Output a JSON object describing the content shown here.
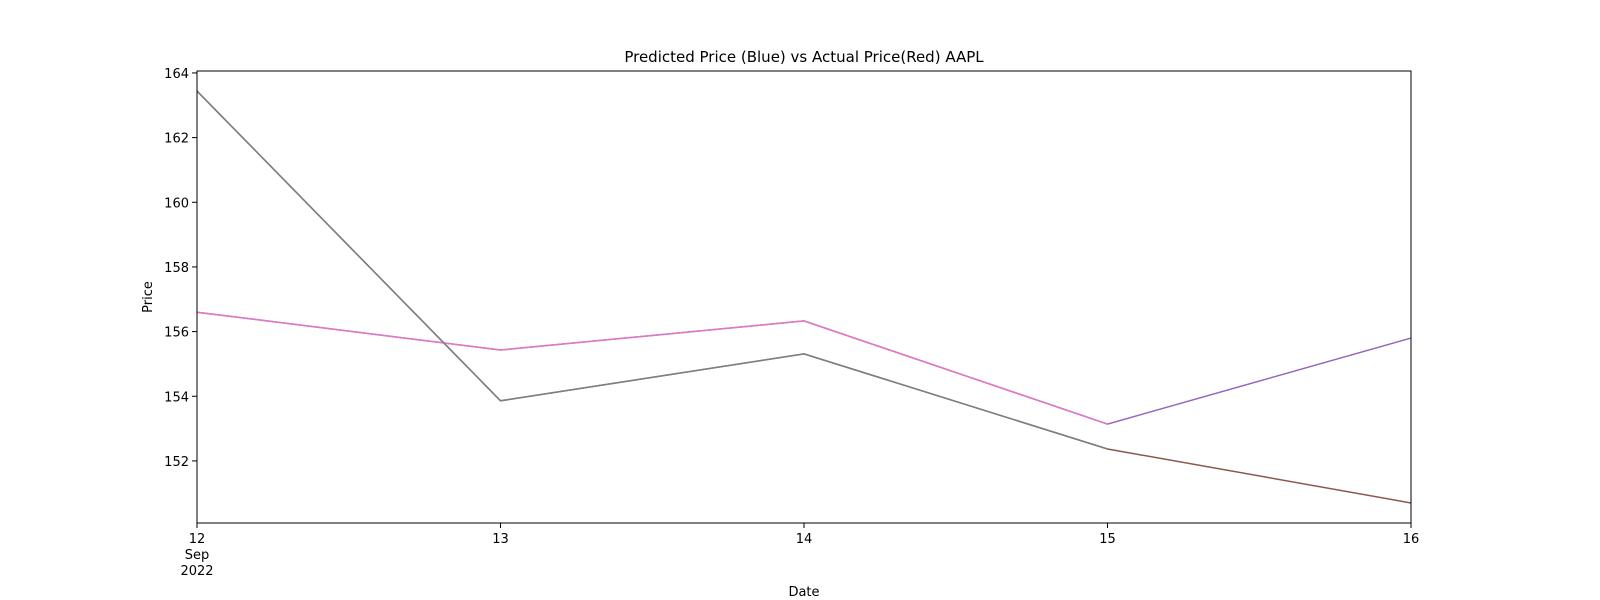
{
  "chart_data": {
    "type": "line",
    "title": "Predicted Price (Blue) vs Actual Price(Red) AAPL",
    "x_label": "Date",
    "y_label": "Price",
    "x": [
      "2022-09-12",
      "2022-09-13",
      "2022-09-14",
      "2022-09-15",
      "2022-09-16"
    ],
    "xlim": [
      "2022-09-12",
      "2022-09-16"
    ],
    "xticks": [
      {
        "value": "2022-09-12",
        "label": "12"
      },
      {
        "value": "2022-09-13",
        "label": "13"
      },
      {
        "value": "2022-09-14",
        "label": "14"
      },
      {
        "value": "2022-09-15",
        "label": "15"
      },
      {
        "value": "2022-09-16",
        "label": "16"
      }
    ],
    "x_sublabels": [
      "Sep",
      "2022"
    ],
    "ylim": [
      150.08,
      164.06
    ],
    "yticks": [
      152,
      154,
      156,
      158,
      160,
      162,
      164
    ],
    "series": [
      {
        "color": "#9467bd",
        "values": [
          156.6,
          155.43,
          156.33,
          153.14,
          155.8
        ]
      },
      {
        "color": "#8c564b",
        "values": [
          163.44,
          153.86,
          155.31,
          152.37,
          150.7
        ]
      },
      {
        "color": "#e377c2",
        "values": [
          156.6,
          155.43,
          156.33,
          153.14,
          null
        ]
      },
      {
        "color": "#7f7f7f",
        "values": [
          163.44,
          153.86,
          155.31,
          152.37,
          null
        ]
      }
    ]
  }
}
